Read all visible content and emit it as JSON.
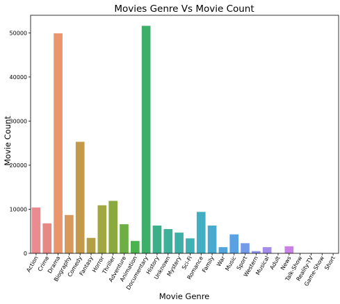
{
  "chart_data": {
    "type": "bar",
    "title": "Movies Genre Vs Movie Count",
    "xlabel": "Movie Genre",
    "ylabel": "Movie Count",
    "ylim": [
      0,
      54000
    ],
    "yticks": [
      0,
      10000,
      20000,
      30000,
      40000,
      50000
    ],
    "grid": false,
    "legend": "none",
    "categories": [
      "Action",
      "Crime",
      "Drama",
      "Biography",
      "Comedy",
      "Fantasy",
      "Horror",
      "Thriller",
      "Adventure",
      "Animation",
      "Documentary",
      "History",
      "Unknown",
      "Mystery",
      "Sci-Fi",
      "Romance",
      "Family",
      "War",
      "Music",
      "Sport",
      "Western",
      "Musical",
      "Adult",
      "News",
      "Talk-Show",
      "Reality-TV",
      "Game-Show",
      "Short"
    ],
    "values": [
      10400,
      6800,
      49900,
      8700,
      25300,
      3500,
      10900,
      11900,
      6600,
      2800,
      51600,
      6300,
      5500,
      4700,
      3400,
      9400,
      6300,
      1400,
      4300,
      2300,
      500,
      1400,
      40,
      1600,
      60,
      50,
      40,
      20
    ],
    "colors": [
      "#e98b8f",
      "#e88884",
      "#ea956b",
      "#d79a5c",
      "#c49a4a",
      "#b39f46",
      "#a1a741",
      "#8aaa40",
      "#6dae45",
      "#4cb24f",
      "#3eae6b",
      "#3daf88",
      "#3eaf98",
      "#3eafa6",
      "#3fb0b4",
      "#42aec2",
      "#48aacf",
      "#52a5dc",
      "#5aa1e4",
      "#729ae8",
      "#8c93ea",
      "#a38cea",
      "#b786e8",
      "#ca80e6",
      "#d87ed9",
      "#e27ecd",
      "#e780bf",
      "#e984ad"
    ]
  }
}
